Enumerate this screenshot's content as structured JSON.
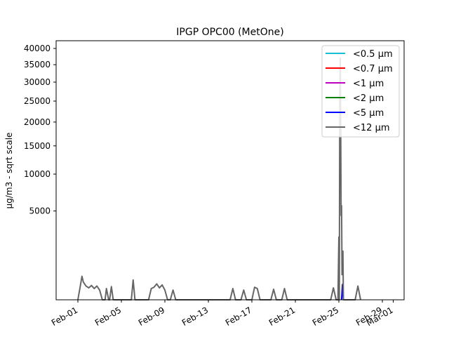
{
  "chart_data": {
    "type": "line",
    "title": "IPGP OPC00 (MetOne)",
    "ylabel": "µg/m3 - sqrt scale",
    "xlabel": "",
    "y_scale": "sqrt",
    "ylim": [
      0,
      42500
    ],
    "xlim": [
      "2024-01-30",
      "2024-03-02"
    ],
    "x_ticks": [
      {
        "date": "2024-02-01",
        "label": "Feb-01"
      },
      {
        "date": "2024-02-05",
        "label": "Feb-05"
      },
      {
        "date": "2024-02-09",
        "label": "Feb-09"
      },
      {
        "date": "2024-02-13",
        "label": "Feb-13"
      },
      {
        "date": "2024-02-17",
        "label": "Feb-17"
      },
      {
        "date": "2024-02-21",
        "label": "Feb-21"
      },
      {
        "date": "2024-02-25",
        "label": "Feb-25"
      },
      {
        "date": "2024-02-29",
        "label": "Feb-29"
      },
      {
        "date": "2024-03-01",
        "label": "Mar-01"
      }
    ],
    "y_ticks": [
      5000,
      10000,
      15000,
      20000,
      25000,
      30000,
      35000,
      40000
    ],
    "legend_position": "top-right",
    "series": [
      {
        "name": "<0.5 µm",
        "color": "#17becf",
        "points": []
      },
      {
        "name": "<0.7 µm",
        "color": "#ff0000",
        "points": []
      },
      {
        "name": "<1 µm",
        "color": "#bf00bf",
        "points": []
      },
      {
        "name": "<2 µm",
        "color": "#008000",
        "points": []
      },
      {
        "name": "<5 µm",
        "color": "#0000ff",
        "points": [
          [
            "2024-02-25 06:00",
            0
          ],
          [
            "2024-02-25 08:00",
            150
          ],
          [
            "2024-02-25 10:00",
            0
          ]
        ]
      },
      {
        "name": "<12 µm",
        "color": "#666666",
        "points": [
          [
            "2024-02-01 00:00",
            0
          ],
          [
            "2024-02-01 06:00",
            150
          ],
          [
            "2024-02-01 09:00",
            350
          ],
          [
            "2024-02-01 12:00",
            200
          ],
          [
            "2024-02-01 18:00",
            120
          ],
          [
            "2024-02-02 00:00",
            90
          ],
          [
            "2024-02-02 06:00",
            130
          ],
          [
            "2024-02-02 12:00",
            80
          ],
          [
            "2024-02-02 18:00",
            120
          ],
          [
            "2024-02-03 00:00",
            60
          ],
          [
            "2024-02-03 06:00",
            0
          ],
          [
            "2024-02-03 12:00",
            0
          ],
          [
            "2024-02-03 15:00",
            80
          ],
          [
            "2024-02-03 20:00",
            0
          ],
          [
            "2024-02-03 22:00",
            0
          ],
          [
            "2024-02-04 02:00",
            110
          ],
          [
            "2024-02-04 06:00",
            0
          ],
          [
            "2024-02-05 22:00",
            0
          ],
          [
            "2024-02-06 02:00",
            250
          ],
          [
            "2024-02-06 06:00",
            0
          ],
          [
            "2024-02-07 12:00",
            0
          ],
          [
            "2024-02-07 18:00",
            80
          ],
          [
            "2024-02-08 00:00",
            100
          ],
          [
            "2024-02-08 06:00",
            160
          ],
          [
            "2024-02-08 12:00",
            90
          ],
          [
            "2024-02-08 18:00",
            140
          ],
          [
            "2024-02-09 00:00",
            60
          ],
          [
            "2024-02-09 06:00",
            0
          ],
          [
            "2024-02-09 12:00",
            0
          ],
          [
            "2024-02-09 18:00",
            60
          ],
          [
            "2024-02-10 00:00",
            0
          ],
          [
            "2024-02-15 00:00",
            0
          ],
          [
            "2024-02-15 06:00",
            80
          ],
          [
            "2024-02-15 12:00",
            0
          ],
          [
            "2024-02-16 00:00",
            0
          ],
          [
            "2024-02-16 06:00",
            60
          ],
          [
            "2024-02-16 12:00",
            0
          ],
          [
            "2024-02-17 00:00",
            0
          ],
          [
            "2024-02-17 06:00",
            100
          ],
          [
            "2024-02-17 12:00",
            80
          ],
          [
            "2024-02-17 18:00",
            0
          ],
          [
            "2024-02-18 18:00",
            0
          ],
          [
            "2024-02-19 00:00",
            70
          ],
          [
            "2024-02-19 06:00",
            0
          ],
          [
            "2024-02-19 18:00",
            0
          ],
          [
            "2024-02-20 00:00",
            80
          ],
          [
            "2024-02-20 06:00",
            0
          ],
          [
            "2024-02-24 06:00",
            0
          ],
          [
            "2024-02-24 12:00",
            90
          ],
          [
            "2024-02-24 18:00",
            0
          ],
          [
            "2024-02-24 22:00",
            0
          ],
          [
            "2024-02-25 00:00",
            2500
          ],
          [
            "2024-02-25 01:00",
            0
          ],
          [
            "2024-02-25 02:00",
            25000
          ],
          [
            "2024-02-25 03:00",
            37000
          ],
          [
            "2024-02-25 04:00",
            21000
          ],
          [
            "2024-02-25 05:00",
            4500
          ],
          [
            "2024-02-25 06:00",
            5600
          ],
          [
            "2024-02-25 07:00",
            400
          ],
          [
            "2024-02-25 08:00",
            800
          ],
          [
            "2024-02-25 09:00",
            1500
          ],
          [
            "2024-02-25 10:00",
            0
          ],
          [
            "2024-02-26 12:00",
            0
          ],
          [
            "2024-02-26 18:00",
            120
          ],
          [
            "2024-02-27 00:00",
            0
          ]
        ]
      }
    ]
  }
}
